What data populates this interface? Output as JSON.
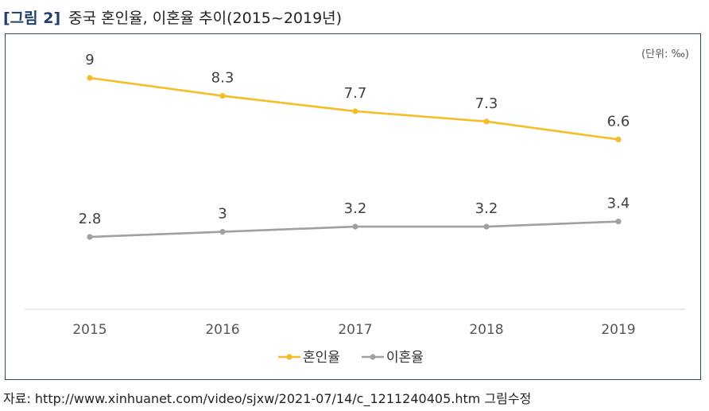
{
  "caption": {
    "label": "[그림 2]",
    "title": "중국 혼인율, 이혼율 추이(2015~2019년)"
  },
  "unit_note": "(단위: ‰)",
  "source_text": "자료: http://www.xinhuanet.com/video/sjxw/2021-07/14/c_1211240405.htm 그림수정",
  "chart_data": {
    "type": "line",
    "title": "중국 혼인율, 이혼율 추이(2015~2019년)",
    "categories": [
      "2015",
      "2016",
      "2017",
      "2018",
      "2019"
    ],
    "series": [
      {
        "name": "혼인율",
        "values": [
          9,
          8.3,
          7.7,
          7.3,
          6.6
        ],
        "labels": [
          "9",
          "8.3",
          "7.7",
          "7.3",
          "6.6"
        ],
        "color": "#f6bd2a"
      },
      {
        "name": "이혼율",
        "values": [
          2.8,
          3,
          3.2,
          3.2,
          3.4
        ],
        "labels": [
          "2.8",
          "3",
          "3.2",
          "3.2",
          "3.4"
        ],
        "color": "#a0a0a0"
      }
    ],
    "xlabel": "",
    "ylabel": "",
    "ylim": [
      0,
      10
    ],
    "grid": false,
    "legend": "bottom",
    "y_axis_visible": false
  }
}
